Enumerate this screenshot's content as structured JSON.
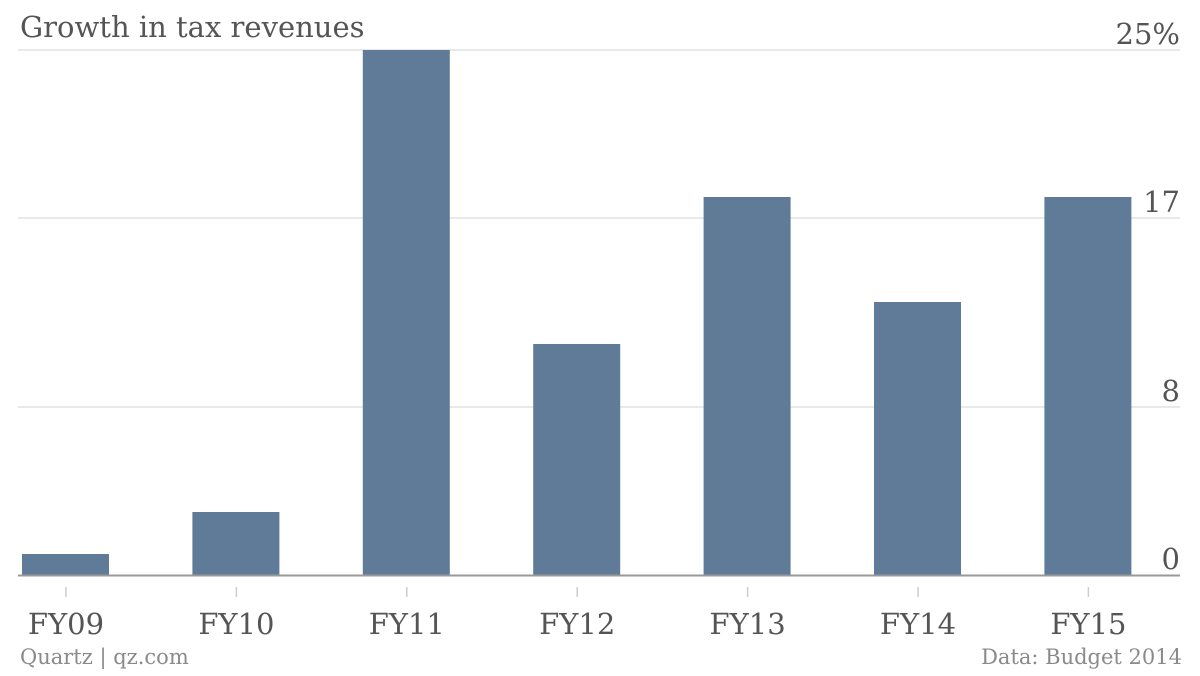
{
  "source_left": "Quartz | qz.com",
  "source_right": "Data: Budget 2014",
  "colors": {
    "bar": "#5f7b97",
    "grid": "#e2e2e2",
    "axis": "#999999",
    "text": "#555555"
  },
  "chart_data": {
    "type": "bar",
    "title": "Growth in tax revenues",
    "xlabel": "",
    "ylabel": "",
    "categories": [
      "FY09",
      "FY10",
      "FY11",
      "FY12",
      "FY13",
      "FY14",
      "FY15"
    ],
    "values": [
      1.0,
      3.0,
      25.0,
      11.0,
      18.0,
      13.0,
      18.0
    ],
    "ylim": [
      0,
      25
    ],
    "y_ticks": [
      0,
      8,
      17,
      25
    ],
    "y_tick_labels": [
      "0",
      "8",
      "17",
      "25%"
    ],
    "y_axis_side": "right",
    "grid": true,
    "legend": "none"
  }
}
